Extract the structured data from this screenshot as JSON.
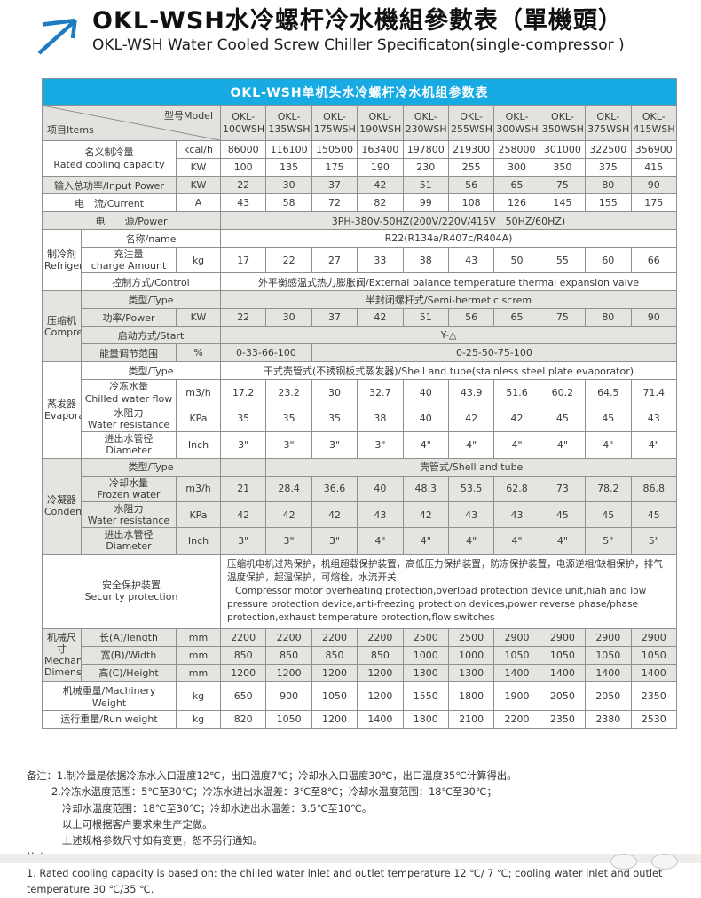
{
  "page": {
    "title_zh": "OKL-WSH水冷螺杆冷水機組參數表（單機頭）",
    "title_en": "OKL-WSH Water Cooled Screw Chiller Specificaton(single-compressor )",
    "accent_color": "#18abe3",
    "logo_color": "#1d7cc2"
  },
  "table": {
    "banner": "OKL-WSH单机头水冷螺杆冷水机组参数表",
    "corner": {
      "items": "项目Items",
      "model": "型号Model"
    },
    "models": [
      {
        "p": "OKL-",
        "n": "100WSH"
      },
      {
        "p": "OKL-",
        "n": "135WSH"
      },
      {
        "p": "OKL-",
        "n": "175WSH"
      },
      {
        "p": "OKL-",
        "n": "190WSH"
      },
      {
        "p": "OKL-",
        "n": "230WSH"
      },
      {
        "p": "OKL-",
        "n": "255WSH"
      },
      {
        "p": "OKL-",
        "n": "300WSH"
      },
      {
        "p": "OKL-",
        "n": "350WSH"
      },
      {
        "p": "OKL-",
        "n": "375WSH"
      },
      {
        "p": "OKL-",
        "n": "415WSH"
      }
    ],
    "capacity": {
      "zh": "名义制冷量",
      "en": "Rated cooling capacity",
      "unit1": "kcal/h",
      "unit2": "KW",
      "kcal": [
        "86000",
        "116100",
        "150500",
        "163400",
        "197800",
        "219300",
        "258000",
        "301000",
        "322500",
        "356900"
      ],
      "kw": [
        "100",
        "135",
        "175",
        "190",
        "230",
        "255",
        "300",
        "350",
        "375",
        "415"
      ]
    },
    "input_power": {
      "label": "输入总功率/Input Power",
      "unit": "KW",
      "values": [
        "22",
        "30",
        "37",
        "42",
        "51",
        "56",
        "65",
        "75",
        "80",
        "90"
      ]
    },
    "current": {
      "label": "电　流/Current",
      "unit": "A",
      "values": [
        "43",
        "58",
        "72",
        "82",
        "99",
        "108",
        "126",
        "145",
        "155",
        "175"
      ]
    },
    "power_source": {
      "label": "电　　源/Power",
      "value": "3PH-380V-50HZ(200V/220V/415V　50HZ/60HZ)"
    },
    "refrigerant": {
      "cat_zh": "制冷剂",
      "cat_en": "Refrigerant",
      "name_label": "名称/name",
      "name_value": "R22(R134a/R407c/R404A)",
      "charge_zh": "充注量",
      "charge_en": "charge Amount",
      "charge_unit": "kg",
      "charge_values": [
        "17",
        "22",
        "27",
        "33",
        "38",
        "43",
        "50",
        "55",
        "60",
        "66"
      ],
      "control_label": "控制方式/Control",
      "control_value": "外平衡感温式热力膨胀阀/External balance temperature thermal expansion valve"
    },
    "compressor": {
      "cat_zh": "压缩机",
      "cat_en": "Compressor",
      "type_label": "类型/Type",
      "type_value": "半封闭螺杆式/Semi-hermetic screm",
      "power_label": "功率/Power",
      "power_unit": "KW",
      "power_values": [
        "22",
        "30",
        "37",
        "42",
        "51",
        "56",
        "65",
        "75",
        "80",
        "90"
      ],
      "start_label": "启动方式/Start",
      "start_value": "Y-△",
      "energy_label": "能量调节范围",
      "energy_unit": "%",
      "energy_value_a": "0-33-66-100",
      "energy_value_b": "0-25-50-75-100"
    },
    "evaporator": {
      "cat_zh": "蒸发器",
      "cat_en": "Evaporator",
      "type_label": "类型/Type",
      "type_value": "干式壳管式(不锈钢板式蒸发器)/Shell and tube(stainless steel plate evaporator)",
      "flow_zh": "冷冻水量",
      "flow_en": "Chilled water flow",
      "flow_unit": "m3/h",
      "flow_values": [
        "17.2",
        "23.2",
        "30",
        "32.7",
        "40",
        "43.9",
        "51.6",
        "60.2",
        "64.5",
        "71.4"
      ],
      "resist_zh": "水阻力",
      "resist_en": "Water resistance",
      "resist_unit": "KPa",
      "resist_values": [
        "35",
        "35",
        "35",
        "38",
        "40",
        "42",
        "42",
        "45",
        "45",
        "43"
      ],
      "diam_zh": "进出水管径",
      "diam_en": "Diameter",
      "diam_unit": "Inch",
      "diam_values": [
        "3\"",
        "3\"",
        "3\"",
        "3\"",
        "4\"",
        "4\"",
        "4\"",
        "4\"",
        "4\"",
        "4\""
      ]
    },
    "condenser": {
      "cat_zh": "冷凝器",
      "cat_en": "Condenser",
      "type_label": "类型/Type",
      "type_empty": "",
      "type_value": "壳管式/Shell and tube",
      "flow_zh": "冷却水量",
      "flow_en": "Frozen water",
      "flow_unit": "m3/h",
      "flow_values": [
        "21",
        "28.4",
        "36.6",
        "40",
        "48.3",
        "53.5",
        "62.8",
        "73",
        "78.2",
        "86.8"
      ],
      "resist_zh": "水阻力",
      "resist_en": "Water resistance",
      "resist_unit": "KPa",
      "resist_values": [
        "42",
        "42",
        "42",
        "43",
        "42",
        "43",
        "43",
        "45",
        "45",
        "45"
      ],
      "diam_zh": "进出水管径",
      "diam_en": "Diameter",
      "diam_unit": "Inch",
      "diam_values": [
        "3\"",
        "3\"",
        "3\"",
        "4\"",
        "4\"",
        "4\"",
        "4\"",
        "4\"",
        "5\"",
        "5\""
      ]
    },
    "security": {
      "label_zh": "安全保护装置",
      "label_en": "Security protection",
      "text_zh": "压缩机电机过热保护，机组超载保护装置，高低压力保护装置，防冻保护装置，电源逆相/缺相保护，排气温度保护，超温保护，可熔栓，水流开关",
      "text_en": "Compressor motor overheating protection,overload protection device unit,hiah and low pressure protection device,anti-freezing protection devices,power reverse phase/phase protection,exhaust temperature protection,flow switches"
    },
    "dimensions": {
      "cat_zh": "机械尺寸",
      "cat_en1": "Mechanical",
      "cat_en2": "Dimensions",
      "length_label": "长(A)/length",
      "length_unit": "mm",
      "length_values": [
        "2200",
        "2200",
        "2200",
        "2200",
        "2500",
        "2500",
        "2900",
        "2900",
        "2900",
        "2900"
      ],
      "width_label": "宽(B)/Width",
      "width_unit": "mm",
      "width_values": [
        "850",
        "850",
        "850",
        "850",
        "1000",
        "1000",
        "1050",
        "1050",
        "1050",
        "1050"
      ],
      "height_label": "高(C)/Height",
      "height_unit": "mm",
      "height_values": [
        "1200",
        "1200",
        "1200",
        "1200",
        "1300",
        "1300",
        "1400",
        "1400",
        "1400",
        "1400"
      ]
    },
    "machinery_weight": {
      "label": "机械重量/Machinery Weight",
      "unit": "kg",
      "values": [
        "650",
        "900",
        "1050",
        "1200",
        "1550",
        "1800",
        "1900",
        "2050",
        "2050",
        "2350"
      ]
    },
    "run_weight": {
      "label": "运行重量/Run weight",
      "unit": "kg",
      "values": [
        "820",
        "1050",
        "1200",
        "1400",
        "1800",
        "2100",
        "2200",
        "2350",
        "2380",
        "2530"
      ]
    }
  },
  "notes": {
    "lines": [
      "备注：1.制冷量是依据冷冻水入口温度12℃，出口温度7℃；冷却水入口温度30℃，出口温度35℃计算得出。",
      "2.冷冻水温度范围：5℃至30℃；冷冻水进出水温差：3℃至8℃；冷却水温度范围：18℃至30℃；",
      "冷却水温度范围：18℃至30℃；冷却水进出水温差：3.5℃至10℃。",
      "以上可根据客户要求来生产定做。",
      "上述规格参数尺寸如有变更，恕不另行通知。",
      "Notes:",
      "1. Rated cooling capacity is based on: the chilled water inlet and outlet temperature 12 ℃/ 7 ℃; cooling water inlet and outlet temperature 30 ℃/35 ℃."
    ]
  }
}
